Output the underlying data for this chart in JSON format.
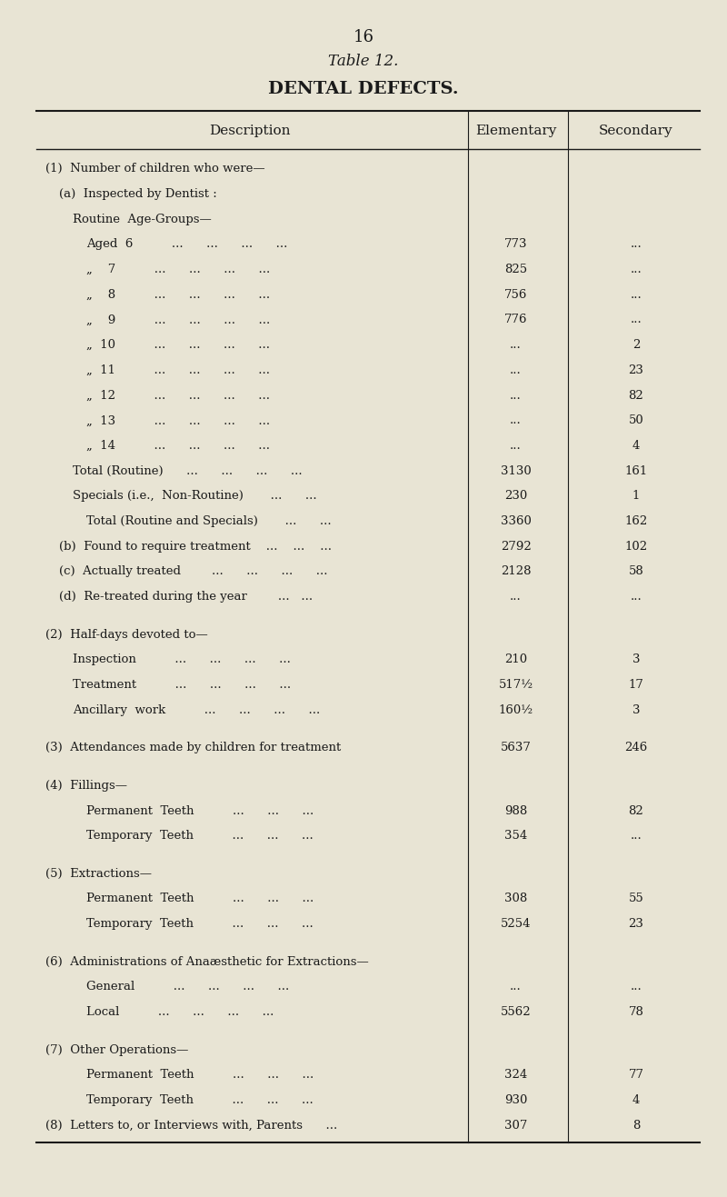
{
  "page_number": "16",
  "table_number": "Table 12.",
  "table_title": "DENTAL DEFECTS.",
  "col_headers": [
    "Description",
    "Elementary",
    "Secondary"
  ],
  "bg_color": "#e8e4d4",
  "rows": [
    {
      "indent": 0,
      "text": "(1)  Number of children who were—",
      "elem": "",
      "sec": "",
      "bold": false
    },
    {
      "indent": 1,
      "text": "(a)  Inspected by Dentist :",
      "elem": "",
      "sec": "",
      "bold": false
    },
    {
      "indent": 2,
      "text": "Routine  Age-Groups—",
      "elem": "",
      "sec": "",
      "bold": false
    },
    {
      "indent": 3,
      "text": "Aged  6          ...      ...      ...      ...",
      "elem": "773",
      "sec": "...",
      "bold": false
    },
    {
      "indent": 3,
      "text": "„    7          ...      ...      ...      ...",
      "elem": "825",
      "sec": "...",
      "bold": false
    },
    {
      "indent": 3,
      "text": "„    8          ...      ...      ...      ...",
      "elem": "756",
      "sec": "...",
      "bold": false
    },
    {
      "indent": 3,
      "text": "„    9          ...      ...      ...      ...",
      "elem": "776",
      "sec": "...",
      "bold": false
    },
    {
      "indent": 3,
      "text": "„  10          ...      ...      ...      ...",
      "elem": "...",
      "sec": "2",
      "bold": false
    },
    {
      "indent": 3,
      "text": "„  11          ...      ...      ...      ...",
      "elem": "...",
      "sec": "23",
      "bold": false
    },
    {
      "indent": 3,
      "text": "„  12          ...      ...      ...      ...",
      "elem": "...",
      "sec": "82",
      "bold": false
    },
    {
      "indent": 3,
      "text": "„  13          ...      ...      ...      ...",
      "elem": "...",
      "sec": "50",
      "bold": false
    },
    {
      "indent": 3,
      "text": "„  14          ...      ...      ...      ...",
      "elem": "...",
      "sec": "4",
      "bold": false
    },
    {
      "indent": 2,
      "text": "Total (Routine)      ...      ...      ...      ...",
      "elem": "3130",
      "sec": "161",
      "bold": false
    },
    {
      "indent": 2,
      "text": "Specials (i.e.,  Non-Routine)       ...      ...",
      "elem": "230",
      "sec": "1",
      "bold": false
    },
    {
      "indent": 3,
      "text": "Total (Routine and Specials)       ...      ...",
      "elem": "3360",
      "sec": "162",
      "bold": false
    },
    {
      "indent": 1,
      "text": "(b)  Found to require treatment    ...    ...    ...",
      "elem": "2792",
      "sec": "102",
      "bold": false
    },
    {
      "indent": 1,
      "text": "(c)  Actually treated        ...      ...      ...      ...",
      "elem": "2128",
      "sec": "58",
      "bold": false
    },
    {
      "indent": 1,
      "text": "(d)  Re-treated during the year        ...   ...",
      "elem": "...",
      "sec": "...",
      "bold": false
    },
    {
      "indent": 0,
      "text": "",
      "elem": "",
      "sec": "",
      "bold": false
    },
    {
      "indent": 0,
      "text": "(2)  Half-days devoted to—",
      "elem": "",
      "sec": "",
      "bold": false
    },
    {
      "indent": 2,
      "text": "Inspection          ...      ...      ...      ...",
      "elem": "210",
      "sec": "3",
      "bold": false
    },
    {
      "indent": 2,
      "text": "Treatment          ...      ...      ...      ...",
      "elem": "517½",
      "sec": "17",
      "bold": false
    },
    {
      "indent": 2,
      "text": "Ancillary  work          ...      ...      ...      ...",
      "elem": "160½",
      "sec": "3",
      "bold": false
    },
    {
      "indent": 0,
      "text": "",
      "elem": "",
      "sec": "",
      "bold": false
    },
    {
      "indent": 0,
      "text": "(3)  Attendances made by children for treatment",
      "elem": "5637",
      "sec": "246",
      "bold": false
    },
    {
      "indent": 0,
      "text": "",
      "elem": "",
      "sec": "",
      "bold": false
    },
    {
      "indent": 0,
      "text": "(4)  Fillings—",
      "elem": "",
      "sec": "",
      "bold": false
    },
    {
      "indent": 3,
      "text": "Permanent  Teeth          ...      ...      ...",
      "elem": "988",
      "sec": "82",
      "bold": false
    },
    {
      "indent": 3,
      "text": "Temporary  Teeth          ...      ...      ...",
      "elem": "354",
      "sec": "...",
      "bold": false
    },
    {
      "indent": 0,
      "text": "",
      "elem": "",
      "sec": "",
      "bold": false
    },
    {
      "indent": 0,
      "text": "(5)  Extractions—",
      "elem": "",
      "sec": "",
      "bold": false
    },
    {
      "indent": 3,
      "text": "Permanent  Teeth          ...      ...      ...",
      "elem": "308",
      "sec": "55",
      "bold": false
    },
    {
      "indent": 3,
      "text": "Temporary  Teeth          ...      ...      ...",
      "elem": "5254",
      "sec": "23",
      "bold": false
    },
    {
      "indent": 0,
      "text": "",
      "elem": "",
      "sec": "",
      "bold": false
    },
    {
      "indent": 0,
      "text": "(6)  Administrations of Anaæsthetic for Extractions—",
      "elem": "",
      "sec": "",
      "bold": false
    },
    {
      "indent": 3,
      "text": "General          ...      ...      ...      ...",
      "elem": "...",
      "sec": "...",
      "bold": false
    },
    {
      "indent": 3,
      "text": "Local          ...      ...      ...      ...",
      "elem": "5562",
      "sec": "78",
      "bold": false
    },
    {
      "indent": 0,
      "text": "",
      "elem": "",
      "sec": "",
      "bold": false
    },
    {
      "indent": 0,
      "text": "(7)  Other Operations—",
      "elem": "",
      "sec": "",
      "bold": false
    },
    {
      "indent": 3,
      "text": "Permanent  Teeth          ...      ...      ...",
      "elem": "324",
      "sec": "77",
      "bold": false
    },
    {
      "indent": 3,
      "text": "Temporary  Teeth          ...      ...      ...",
      "elem": "930",
      "sec": "4",
      "bold": false
    },
    {
      "indent": 0,
      "text": "(8)  Letters to, or Interviews with, Parents      ...",
      "elem": "307",
      "sec": "8",
      "bold": false
    }
  ]
}
